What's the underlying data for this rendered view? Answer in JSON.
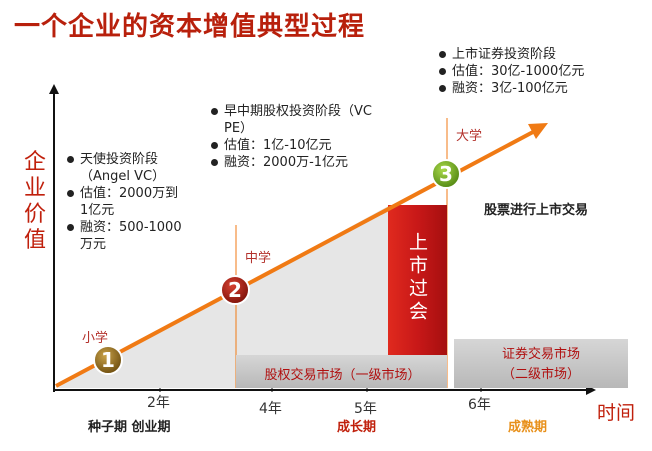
{
  "title": "一个企业的资本增值典型过程",
  "y_axis_label": "企业价值",
  "x_axis_label": "时间",
  "stages": [
    {
      "num": "1",
      "label": "小学"
    },
    {
      "num": "2",
      "label": "中学"
    },
    {
      "num": "3",
      "label": "大学"
    }
  ],
  "angel_block": {
    "lines": [
      "天使投资阶段（Angel VC）",
      "估值：2000万到1亿元",
      "融资：500-1000万元"
    ]
  },
  "vcpe_block": {
    "lines": [
      "早中期股权投资阶段（VC PE）",
      "估值：1亿-10亿元",
      "融资：2000万-1亿元"
    ]
  },
  "listed_block": {
    "lines": [
      "上市证券投资阶段",
      "估值：30亿-1000亿元",
      "融资：3亿-100亿元"
    ]
  },
  "ipo_box": "上市过会",
  "listed_trade_label": "股票进行上市交易",
  "primary_market": "股权交易市场（一级市场）",
  "secondary_market": [
    "证券交易市场",
    "（二级市场）"
  ],
  "ticks": [
    "2年",
    "4年",
    "5年",
    "6年"
  ],
  "periods": [
    {
      "label": "种子期 创业期",
      "color": "#222222"
    },
    {
      "label": "成长期",
      "color": "#c0200c"
    },
    {
      "label": "成熟期",
      "color": "#e8901a"
    }
  ],
  "colors": {
    "title": "#b8200c",
    "arrow": "#f07a14",
    "ipo_red": "#c81818",
    "market_bg": "#c8c8c8",
    "stage_badge_1": "#7a5a12",
    "stage_badge_2": "#9a1a10",
    "stage_badge_3": "#6aa018"
  }
}
